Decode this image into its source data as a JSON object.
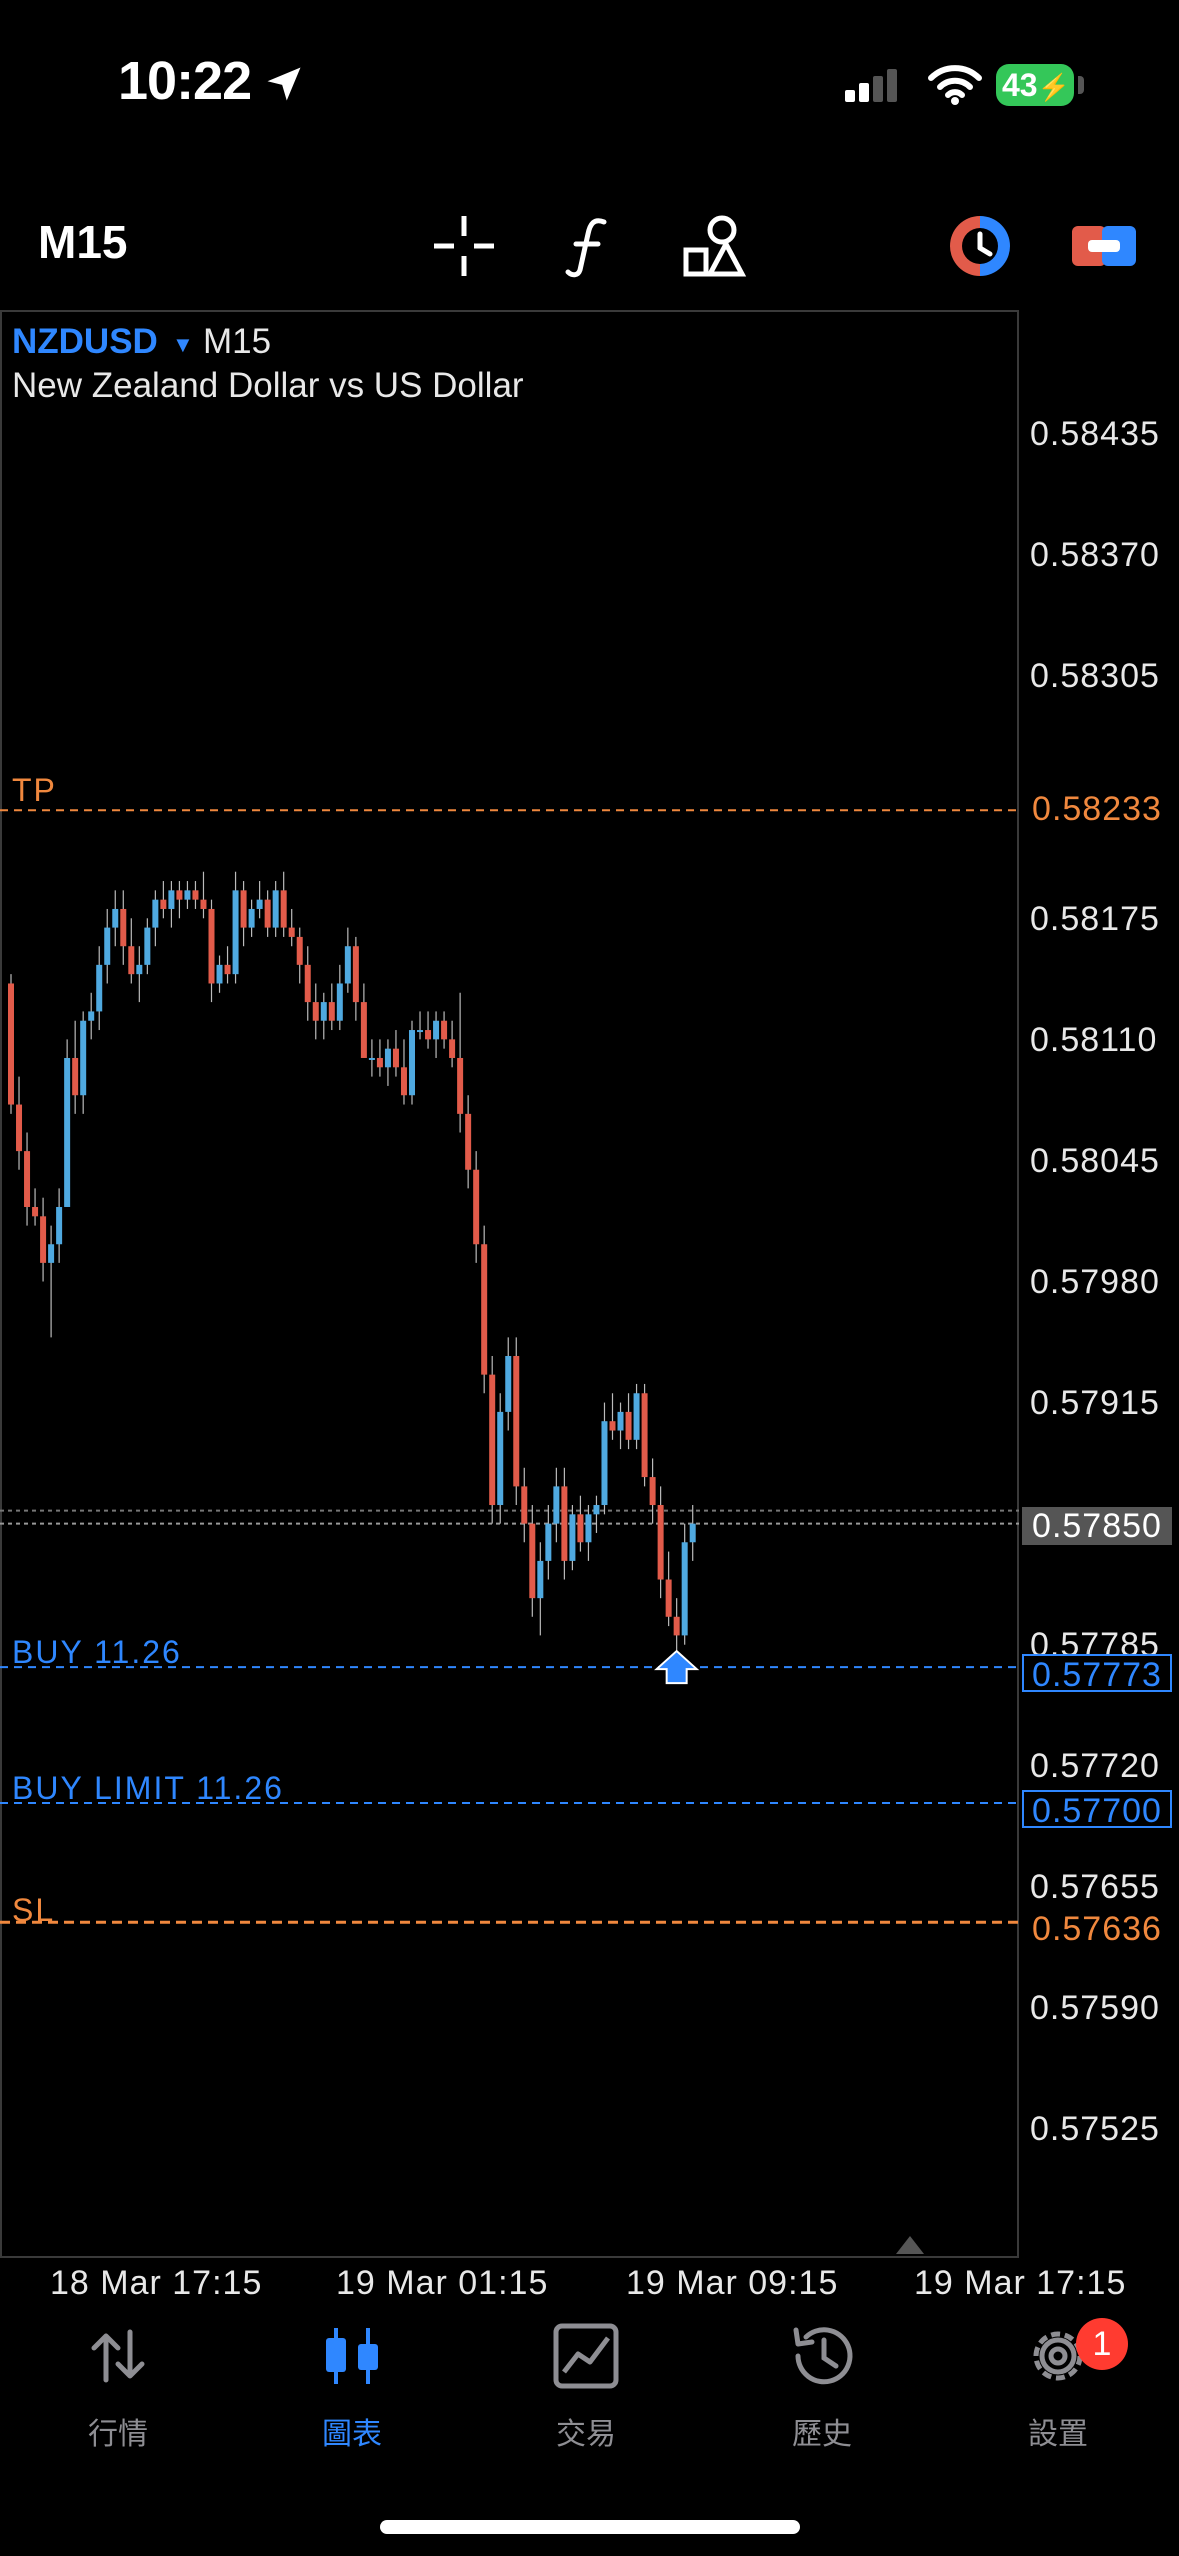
{
  "status_bar": {
    "time": "10:22",
    "battery": "43"
  },
  "toolbar": {
    "timeframe": "M15",
    "icons": [
      "crosshair-icon",
      "indicator-f-icon",
      "objects-icon",
      "one-click-trading-icon",
      "trade-panel-icon"
    ]
  },
  "chart": {
    "symbol": "NZDUSD",
    "timeframe": "M15",
    "description": "New Zealand Dollar vs US Dollar",
    "price_scale": [
      "0.58435",
      "0.58370",
      "0.58305",
      "0.58175",
      "0.58110",
      "0.58045",
      "0.57980",
      "0.57915",
      "0.57785",
      "0.57720",
      "0.57655",
      "0.57590",
      "0.57525"
    ],
    "lines": {
      "tp": {
        "label": "TP",
        "price": "0.58233"
      },
      "bid": {
        "price": "0.57850"
      },
      "buy": {
        "label": "BUY 11.26",
        "price": "0.57773"
      },
      "buy_limit": {
        "label": "BUY LIMIT 11.26",
        "price": "0.57700"
      },
      "sl": {
        "label": "SL",
        "price": "0.57636"
      }
    },
    "time_labels": [
      "18 Mar 17:15",
      "19 Mar 01:15",
      "19 Mar 09:15",
      "19 Mar 17:15"
    ],
    "colors": {
      "bull": "#4fa9e0",
      "bear": "#e25b4a",
      "tp_sl": "#f0883e",
      "order": "#2f87ff"
    }
  },
  "chart_data": {
    "type": "candlestick",
    "symbol": "NZDUSD",
    "timeframe": "M15",
    "ylim": [
      0.5748,
      0.5849
    ],
    "candles": [
      [
        0.5814,
        0.58145,
        0.5807,
        0.58075
      ],
      [
        0.58075,
        0.5809,
        0.5804,
        0.5805
      ],
      [
        0.5805,
        0.5806,
        0.5801,
        0.5802
      ],
      [
        0.5802,
        0.5803,
        0.5801,
        0.58015
      ],
      [
        0.58015,
        0.58025,
        0.5798,
        0.5799
      ],
      [
        0.5799,
        0.5801,
        0.5795,
        0.58
      ],
      [
        0.58,
        0.5803,
        0.5799,
        0.5802
      ],
      [
        0.5802,
        0.5811,
        0.5802,
        0.581
      ],
      [
        0.581,
        0.5812,
        0.5807,
        0.5808
      ],
      [
        0.5808,
        0.58125,
        0.5807,
        0.5812
      ],
      [
        0.5812,
        0.58135,
        0.5811,
        0.58125
      ],
      [
        0.58125,
        0.5816,
        0.58115,
        0.5815
      ],
      [
        0.5815,
        0.5818,
        0.5814,
        0.5817
      ],
      [
        0.5817,
        0.5819,
        0.5816,
        0.5818
      ],
      [
        0.5818,
        0.5819,
        0.5815,
        0.5816
      ],
      [
        0.5816,
        0.58175,
        0.5814,
        0.58145
      ],
      [
        0.58145,
        0.5816,
        0.5813,
        0.5815
      ],
      [
        0.5815,
        0.58175,
        0.58145,
        0.5817
      ],
      [
        0.5817,
        0.5819,
        0.5816,
        0.58185
      ],
      [
        0.58185,
        0.58195,
        0.58175,
        0.5818
      ],
      [
        0.5818,
        0.58195,
        0.5817,
        0.5819
      ],
      [
        0.5819,
        0.58195,
        0.58175,
        0.58185
      ],
      [
        0.58185,
        0.58195,
        0.5818,
        0.5819
      ],
      [
        0.5819,
        0.58195,
        0.5818,
        0.58185
      ],
      [
        0.58185,
        0.582,
        0.58175,
        0.5818
      ],
      [
        0.5818,
        0.58185,
        0.5813,
        0.5814
      ],
      [
        0.5814,
        0.58155,
        0.58135,
        0.5815
      ],
      [
        0.5815,
        0.5816,
        0.5814,
        0.58145
      ],
      [
        0.58145,
        0.582,
        0.5814,
        0.5819
      ],
      [
        0.5819,
        0.58195,
        0.5816,
        0.5817
      ],
      [
        0.5817,
        0.58185,
        0.58165,
        0.5818
      ],
      [
        0.5818,
        0.58195,
        0.58175,
        0.58185
      ],
      [
        0.58185,
        0.5819,
        0.58165,
        0.5817
      ],
      [
        0.5817,
        0.58195,
        0.58165,
        0.5819
      ],
      [
        0.5819,
        0.582,
        0.58165,
        0.5817
      ],
      [
        0.5817,
        0.5818,
        0.5816,
        0.58165
      ],
      [
        0.58165,
        0.5817,
        0.5814,
        0.5815
      ],
      [
        0.5815,
        0.5816,
        0.5812,
        0.5813
      ],
      [
        0.5813,
        0.5814,
        0.5811,
        0.5812
      ],
      [
        0.5812,
        0.58135,
        0.5811,
        0.5813
      ],
      [
        0.5813,
        0.5814,
        0.58115,
        0.5812
      ],
      [
        0.5812,
        0.5815,
        0.58115,
        0.5814
      ],
      [
        0.5814,
        0.5817,
        0.58135,
        0.5816
      ],
      [
        0.5816,
        0.58165,
        0.5812,
        0.5813
      ],
      [
        0.5813,
        0.5814,
        0.581,
        0.581
      ],
      [
        0.581,
        0.5811,
        0.5809,
        0.581
      ],
      [
        0.581,
        0.5811,
        0.5809,
        0.58095
      ],
      [
        0.58095,
        0.5811,
        0.58085,
        0.58105
      ],
      [
        0.58105,
        0.58115,
        0.5809,
        0.58095
      ],
      [
        0.58095,
        0.5811,
        0.58075,
        0.5808
      ],
      [
        0.5808,
        0.5812,
        0.58075,
        0.58115
      ],
      [
        0.58115,
        0.58125,
        0.5811,
        0.58115
      ],
      [
        0.58115,
        0.58125,
        0.58105,
        0.5811
      ],
      [
        0.5811,
        0.58125,
        0.581,
        0.5812
      ],
      [
        0.5812,
        0.58125,
        0.58105,
        0.5811
      ],
      [
        0.5811,
        0.5812,
        0.58095,
        0.581
      ],
      [
        0.581,
        0.58135,
        0.5806,
        0.5807
      ],
      [
        0.5807,
        0.5808,
        0.5803,
        0.5804
      ],
      [
        0.5804,
        0.5805,
        0.5799,
        0.58
      ],
      [
        0.58,
        0.5801,
        0.5792,
        0.5793
      ],
      [
        0.5793,
        0.5794,
        0.5785,
        0.5786
      ],
      [
        0.5786,
        0.5792,
        0.5785,
        0.5791
      ],
      [
        0.5791,
        0.5795,
        0.579,
        0.5794
      ],
      [
        0.5794,
        0.5795,
        0.5786,
        0.5787
      ],
      [
        0.5787,
        0.5788,
        0.5784,
        0.5785
      ],
      [
        0.5785,
        0.5786,
        0.578,
        0.5781
      ],
      [
        0.5781,
        0.5784,
        0.5779,
        0.5783
      ],
      [
        0.5783,
        0.5786,
        0.5782,
        0.5785
      ],
      [
        0.5785,
        0.5788,
        0.5784,
        0.5787
      ],
      [
        0.5787,
        0.5788,
        0.5782,
        0.5783
      ],
      [
        0.5783,
        0.5786,
        0.57825,
        0.57855
      ],
      [
        0.57855,
        0.57865,
        0.57835,
        0.5784
      ],
      [
        0.5784,
        0.5786,
        0.5783,
        0.57855
      ],
      [
        0.57855,
        0.57865,
        0.57845,
        0.5786
      ],
      [
        0.5786,
        0.57915,
        0.57855,
        0.57905
      ],
      [
        0.57905,
        0.5792,
        0.57895,
        0.579
      ],
      [
        0.579,
        0.57915,
        0.5789,
        0.5791
      ],
      [
        0.5791,
        0.5792,
        0.5789,
        0.57895
      ],
      [
        0.57895,
        0.57925,
        0.5789,
        0.5792
      ],
      [
        0.5792,
        0.57925,
        0.5787,
        0.57875
      ],
      [
        0.57875,
        0.57885,
        0.5785,
        0.5786
      ],
      [
        0.5786,
        0.5787,
        0.5781,
        0.5782
      ],
      [
        0.5782,
        0.57835,
        0.57795,
        0.578
      ],
      [
        0.578,
        0.5781,
        0.5778,
        0.5779
      ],
      [
        0.5779,
        0.5785,
        0.57785,
        0.5784
      ],
      [
        0.5784,
        0.5786,
        0.5783,
        0.5785
      ]
    ]
  },
  "tabs": [
    {
      "id": "quotes",
      "label": "行情",
      "icon": "quotes-arrows-icon",
      "active": false
    },
    {
      "id": "chart",
      "label": "圖表",
      "icon": "candlestick-icon",
      "active": true
    },
    {
      "id": "trade",
      "label": "交易",
      "icon": "trade-chart-icon",
      "active": false
    },
    {
      "id": "history",
      "label": "歷史",
      "icon": "history-clock-icon",
      "active": false
    },
    {
      "id": "settings",
      "label": "設置",
      "icon": "gear-icon",
      "active": false,
      "badge": "1"
    }
  ]
}
